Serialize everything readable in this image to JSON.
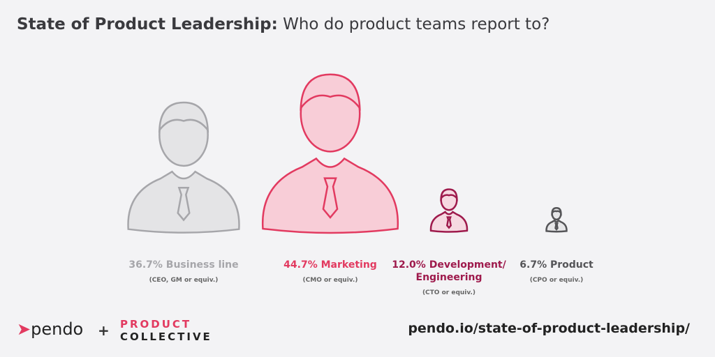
{
  "chart_data": {
    "type": "pictogram",
    "title": "State of Product Leadership:",
    "subtitle": "Who do product teams report to?",
    "categories": [
      "Business line",
      "Marketing",
      "Development/ Engineering",
      "Product"
    ],
    "notes": [
      "(CEO, GM or equiv.)",
      "(CMO or equiv.)",
      "(CTO or equiv.)",
      "(CPO or equiv.)"
    ],
    "values": [
      36.7,
      44.7,
      12.0,
      6.7
    ],
    "value_labels": [
      "36.7%",
      "44.7%",
      "12.0%",
      "6.7%"
    ],
    "colors": [
      "#a6a6aa",
      "#e23a60",
      "#9e1a4c",
      "#555558"
    ],
    "fills": [
      "#e4e4e6",
      "#f8cdd7",
      "#f6d9e1",
      "#e6e6e8"
    ]
  },
  "footer": {
    "logo": "pendo",
    "plus": "+",
    "partner_top": "PRODUCT",
    "partner_bottom": "COLLECTIVE",
    "url": "pendo.io/state-of-product-leadership/"
  }
}
